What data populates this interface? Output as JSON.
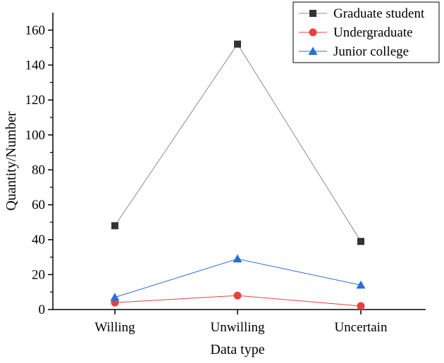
{
  "chart_data": {
    "type": "line",
    "title": "",
    "xlabel": "Data type",
    "ylabel": "Quantity/Number",
    "categories": [
      "Willing",
      "Unwilling",
      "Uncertain"
    ],
    "ylim": [
      0,
      170
    ],
    "yticks": [
      0,
      20,
      40,
      60,
      80,
      100,
      120,
      140,
      160
    ],
    "grid": false,
    "legend_position": "top-right",
    "series": [
      {
        "name": "Graduate student",
        "values": [
          48,
          152,
          39
        ],
        "color": "#333333",
        "line_color": "#8c8c8c",
        "marker": "square"
      },
      {
        "name": "Undergraduate",
        "values": [
          4,
          8,
          2
        ],
        "color": "#e8403a",
        "line_color": "#e8403a",
        "marker": "circle"
      },
      {
        "name": "Junior college",
        "values": [
          7,
          29,
          14
        ],
        "color": "#2a6fd6",
        "line_color": "#2a6fd6",
        "marker": "triangle"
      }
    ]
  }
}
